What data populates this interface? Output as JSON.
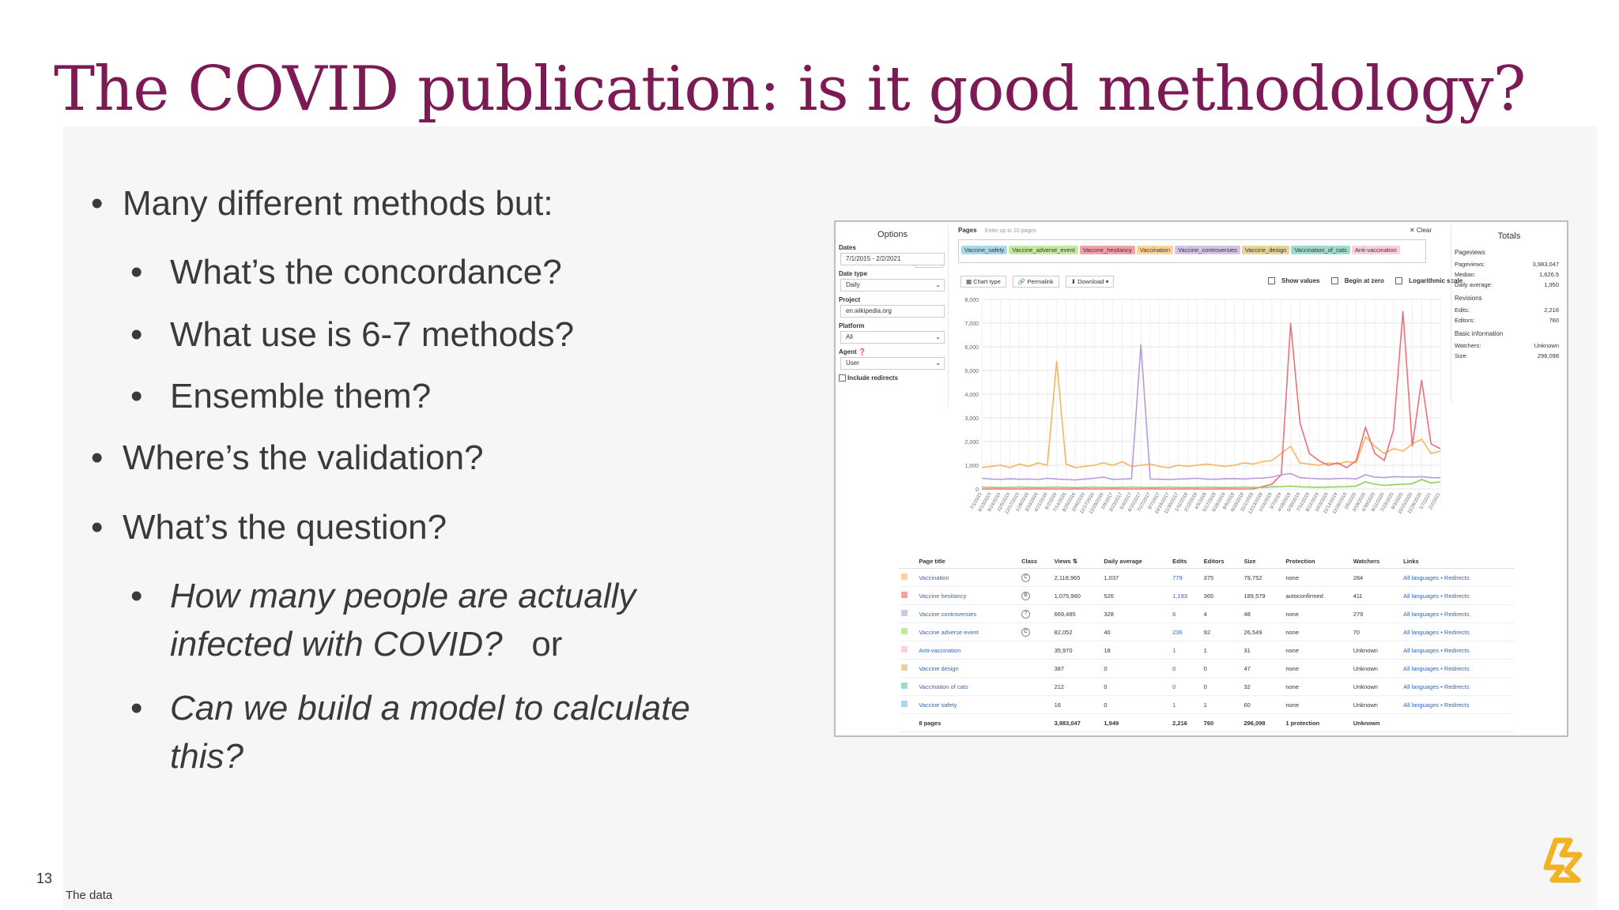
{
  "slide": {
    "title": "The COVID publication: is it good methodology?",
    "number": "13",
    "footer": "The data",
    "title_color": "#7b1a55",
    "logo_icon": "gold-star-logo-icon"
  },
  "bullets": [
    {
      "level": 1,
      "text": "Many different methods but:"
    },
    {
      "level": 2,
      "text": "What’s the concordance?"
    },
    {
      "level": 2,
      "text": "What use is 6-7 methods?"
    },
    {
      "level": 2,
      "text": "Ensemble them?"
    },
    {
      "level": 1,
      "text": "Where’s the validation?"
    },
    {
      "level": 1,
      "text": "What’s the question?"
    },
    {
      "level": 2,
      "text_lines": [
        "How many people are actually",
        "infected with COVID?"
      ],
      "suffix": "or",
      "italic": true
    },
    {
      "level": 2,
      "text_lines": [
        "Can we build a model to calculate",
        "this?"
      ],
      "italic": true
    }
  ],
  "screenshot": {
    "options": {
      "title": "Options",
      "dates_label": "Dates",
      "latest": "Latest ▾",
      "dates_value": "7/1/2015 - 2/2/2021",
      "date_type_label": "Date type",
      "date_type_value": "Daily",
      "project_label": "Project",
      "project_value": "en.wikipedia.org",
      "platform_label": "Platform",
      "platform_value": "All",
      "agent_label": "Agent",
      "agent_value": "User",
      "redirects_label": "Include redirects"
    },
    "pages": {
      "label": "Pages",
      "placeholder": "Enter up to 10 pages",
      "clear": "✕ Clear",
      "chips": [
        {
          "label": "Vaccine_safety",
          "color": "#a8d8ea"
        },
        {
          "label": "Vaccine_adverse_event",
          "color": "#c5e8a0"
        },
        {
          "label": "Vaccine_hesitancy",
          "color": "#f5a0a8"
        },
        {
          "label": "Vaccination",
          "color": "#fcd29a"
        },
        {
          "label": "Vaccine_controversies",
          "color": "#d6c3e8"
        },
        {
          "label": "Vaccine_design",
          "color": "#e8d29a"
        },
        {
          "label": "Vaccination_of_cats",
          "color": "#9cdccf"
        },
        {
          "label": "Anti-vaccination",
          "color": "#fbd0dc"
        }
      ]
    },
    "toolbar": {
      "chart_type": "Chart type",
      "permalink": "Permalink",
      "download": "Download ▾",
      "show_values": "Show values",
      "begin_at_zero": "Begin at zero",
      "log_scale": "Logarithmic scale"
    },
    "chart_data": {
      "type": "line",
      "ylim": [
        0,
        8000
      ],
      "yticks": [
        "8,000",
        "7,000",
        "6,000",
        "5,000",
        "4,000",
        "3,000",
        "2,000",
        "1,000",
        "0"
      ],
      "x": [
        "7/1/2015",
        "8/13/2015",
        "9/24/2015",
        "11/5/2015",
        "12/17/2015",
        "1/28/2016",
        "3/10/2016",
        "4/21/2016",
        "6/2/2016",
        "7/14/2016",
        "8/25/2016",
        "10/6/2016",
        "11/17/2016",
        "12/29/2016",
        "2/9/2017",
        "3/23/2017",
        "5/4/2017",
        "6/15/2017",
        "7/27/2017",
        "9/7/2017",
        "10/19/2017",
        "11/30/2017",
        "1/11/2018",
        "2/22/2018",
        "4/5/2018",
        "5/17/2018",
        "6/28/2018",
        "8/9/2018",
        "9/20/2018",
        "11/1/2018",
        "12/13/2018",
        "1/24/2019",
        "3/7/2019",
        "4/18/2019",
        "5/30/2019",
        "7/11/2019",
        "8/22/2019",
        "10/3/2019",
        "11/14/2019",
        "12/26/2019",
        "2/6/2020",
        "3/19/2020",
        "4/30/2020",
        "6/11/2020",
        "7/23/2020",
        "9/3/2020",
        "10/15/2020",
        "11/26/2020",
        "1/7/2021",
        "2/2/2021"
      ],
      "series": [
        {
          "name": "Vaccination",
          "color": "#f9b45a",
          "values": [
            900,
            950,
            1000,
            900,
            1050,
            950,
            1100,
            1000,
            5400,
            1050,
            900,
            950,
            1000,
            1100,
            1000,
            1150,
            950,
            1000,
            1050,
            950,
            900,
            1000,
            950,
            1000,
            1050,
            1000,
            950,
            1000,
            1100,
            1050,
            1150,
            1200,
            1500,
            1800,
            1100,
            1050,
            1000,
            1100,
            1050,
            1150,
            1100,
            2200,
            1800,
            1500,
            1700,
            1600,
            1900,
            2100,
            1500,
            1600
          ]
        },
        {
          "name": "Vaccine hesitancy",
          "color": "#f06e7a",
          "values": [
            0,
            0,
            0,
            0,
            0,
            0,
            0,
            0,
            0,
            0,
            0,
            0,
            0,
            0,
            0,
            0,
            0,
            0,
            0,
            0,
            0,
            0,
            0,
            0,
            0,
            0,
            0,
            0,
            0,
            0,
            100,
            200,
            600,
            7000,
            2800,
            1500,
            1200,
            1000,
            1100,
            900,
            1200,
            2600,
            1500,
            1200,
            2500,
            7500,
            1800,
            4600,
            1900,
            1700
          ]
        },
        {
          "name": "Vaccine controversies",
          "color": "#b89ad6",
          "values": [
            450,
            420,
            400,
            430,
            410,
            420,
            400,
            450,
            420,
            400,
            380,
            420,
            450,
            500,
            400,
            420,
            430,
            6100,
            420,
            410,
            400,
            420,
            430,
            450,
            420,
            410,
            430,
            440,
            420,
            450,
            460,
            500,
            600,
            650,
            480,
            450,
            430,
            420,
            440,
            450,
            420,
            600,
            500,
            480,
            520,
            510,
            500,
            520,
            480,
            470
          ]
        },
        {
          "name": "Vaccine adverse event",
          "color": "#8fcf5a",
          "values": [
            80,
            70,
            60,
            70,
            80,
            70,
            60,
            70,
            80,
            70,
            60,
            70,
            80,
            70,
            60,
            70,
            80,
            70,
            60,
            70,
            80,
            70,
            60,
            70,
            80,
            70,
            60,
            70,
            80,
            70,
            60,
            90,
            100,
            120,
            90,
            80,
            70,
            80,
            90,
            100,
            120,
            300,
            200,
            150,
            180,
            200,
            220,
            400,
            250,
            300
          ]
        }
      ]
    },
    "totals": {
      "title": "Totals",
      "pageviews_hd": "Pageviews",
      "pageviews_label": "Pageviews:",
      "pageviews": "3,983,047",
      "median_label": "Median:",
      "median": "1,626.5",
      "daily_label": "Daily average:",
      "daily": "1,950",
      "revisions_hd": "Revisions",
      "edits_label": "Edits:",
      "edits": "2,216",
      "editors_label": "Editors:",
      "editors": "760",
      "basic_hd": "Basic information",
      "watchers_label": "Watchers:",
      "watchers": "Unknown",
      "size_label": "Size:",
      "size": "296,098"
    },
    "table": {
      "headers": [
        "",
        "Page title",
        "Class",
        "Views ⇅",
        "Daily average",
        "Edits",
        "Editors",
        "Size",
        "Protection",
        "Watchers",
        "Links"
      ],
      "rows": [
        {
          "color": "#fcd29a",
          "title": "Vaccination",
          "cls": "C",
          "views": "2,118,965",
          "avg": "1,037",
          "edits": "779",
          "editors": "375",
          "size": "79,752",
          "protection": "none",
          "watchers": "284",
          "links": "All languages • Redirects"
        },
        {
          "color": "#f5a0a8",
          "title": "Vaccine hesitancy",
          "cls": "B",
          "views": "1,075,960",
          "avg": "526",
          "edits": "1,193",
          "editors": "365",
          "size": "189,579",
          "protection": "autoconfirmed",
          "watchers": "411",
          "links": "All languages • Redirects"
        },
        {
          "color": "#d6c3e8",
          "title": "Vaccine controversies",
          "cls": "?",
          "views": "669,485",
          "avg": "328",
          "edits": "6",
          "editors": "4",
          "size": "48",
          "protection": "none",
          "watchers": "279",
          "links": "All languages • Redirects"
        },
        {
          "color": "#c5e8a0",
          "title": "Vaccine adverse event",
          "cls": "C",
          "views": "82,052",
          "avg": "40",
          "edits": "236",
          "editors": "92",
          "size": "26,549",
          "protection": "none",
          "watchers": "70",
          "links": "All languages • Redirects"
        },
        {
          "color": "#fbd0dc",
          "title": "Anti-vaccination",
          "cls": "",
          "views": "35,970",
          "avg": "18",
          "edits": "1",
          "editors": "1",
          "size": "31",
          "protection": "none",
          "watchers": "Unknown",
          "links": "All languages • Redirects"
        },
        {
          "color": "#e8d29a",
          "title": "Vaccine design",
          "cls": "",
          "views": "387",
          "avg": "0",
          "edits": "0",
          "editors": "0",
          "size": "47",
          "protection": "none",
          "watchers": "Unknown",
          "links": "All languages • Redirects"
        },
        {
          "color": "#9cdccf",
          "title": "Vaccination of cats",
          "cls": "",
          "views": "212",
          "avg": "0",
          "edits": "0",
          "editors": "0",
          "size": "32",
          "protection": "none",
          "watchers": "Unknown",
          "links": "All languages • Redirects"
        },
        {
          "color": "#a8d8ea",
          "title": "Vaccine safety",
          "cls": "",
          "views": "16",
          "avg": "0",
          "edits": "1",
          "editors": "1",
          "size": "60",
          "protection": "none",
          "watchers": "Unknown",
          "links": "All languages • Redirects"
        }
      ],
      "footer": {
        "pages": "8 pages",
        "views": "3,983,047",
        "avg": "1,949",
        "edits": "2,216",
        "editors": "760",
        "size": "296,098",
        "protection": "1 protection",
        "watchers": "Unknown"
      }
    }
  }
}
